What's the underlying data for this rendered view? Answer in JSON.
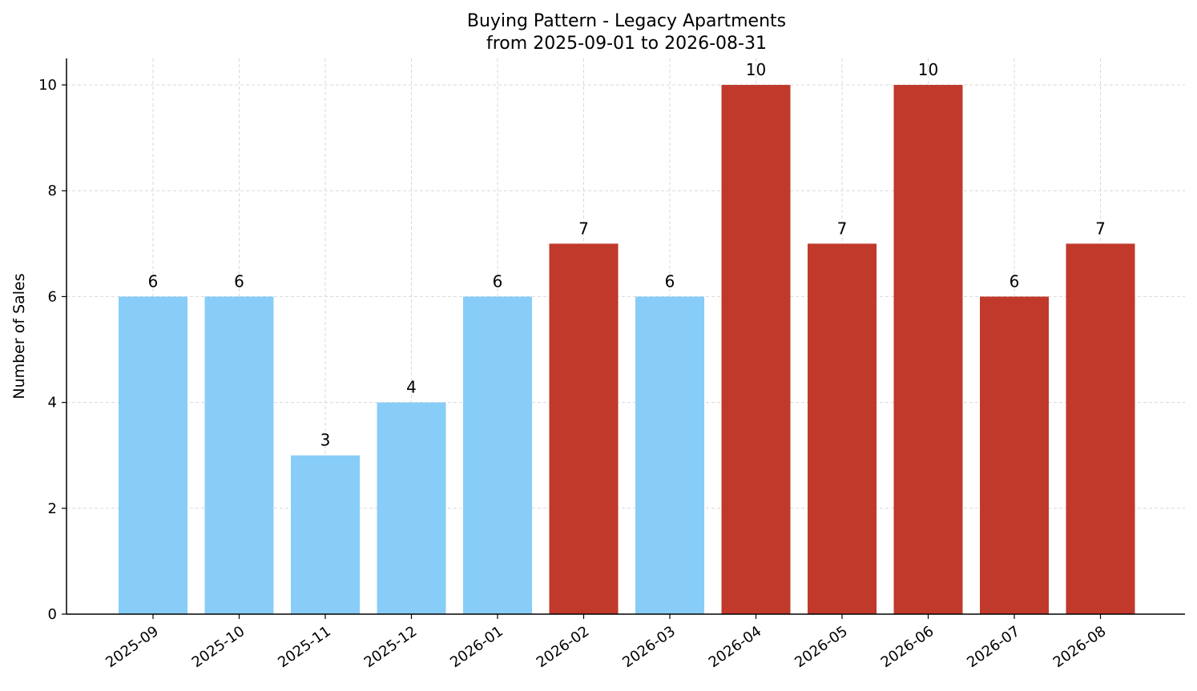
{
  "chart_data": {
    "type": "bar",
    "title": "Buying Pattern - Legacy Apartments",
    "subtitle": "from 2025-09-01 to 2026-08-31",
    "xlabel": "",
    "ylabel": "Number of Sales",
    "categories": [
      "2025-09",
      "2025-10",
      "2025-11",
      "2025-12",
      "2026-01",
      "2026-02",
      "2026-03",
      "2026-04",
      "2026-05",
      "2026-06",
      "2026-07",
      "2026-08"
    ],
    "values": [
      6,
      6,
      3,
      4,
      6,
      7,
      6,
      10,
      7,
      10,
      6,
      7
    ],
    "bar_colors": [
      "#87cdf8",
      "#87cdf8",
      "#87cdf8",
      "#87cdf8",
      "#87cdf8",
      "#c0392b",
      "#87cdf8",
      "#c0392b",
      "#c0392b",
      "#c0392b",
      "#c0392b",
      "#c0392b"
    ],
    "ylim": [
      0,
      10.5
    ],
    "yticks": [
      0,
      2,
      4,
      6,
      8,
      10
    ],
    "grid": true
  }
}
